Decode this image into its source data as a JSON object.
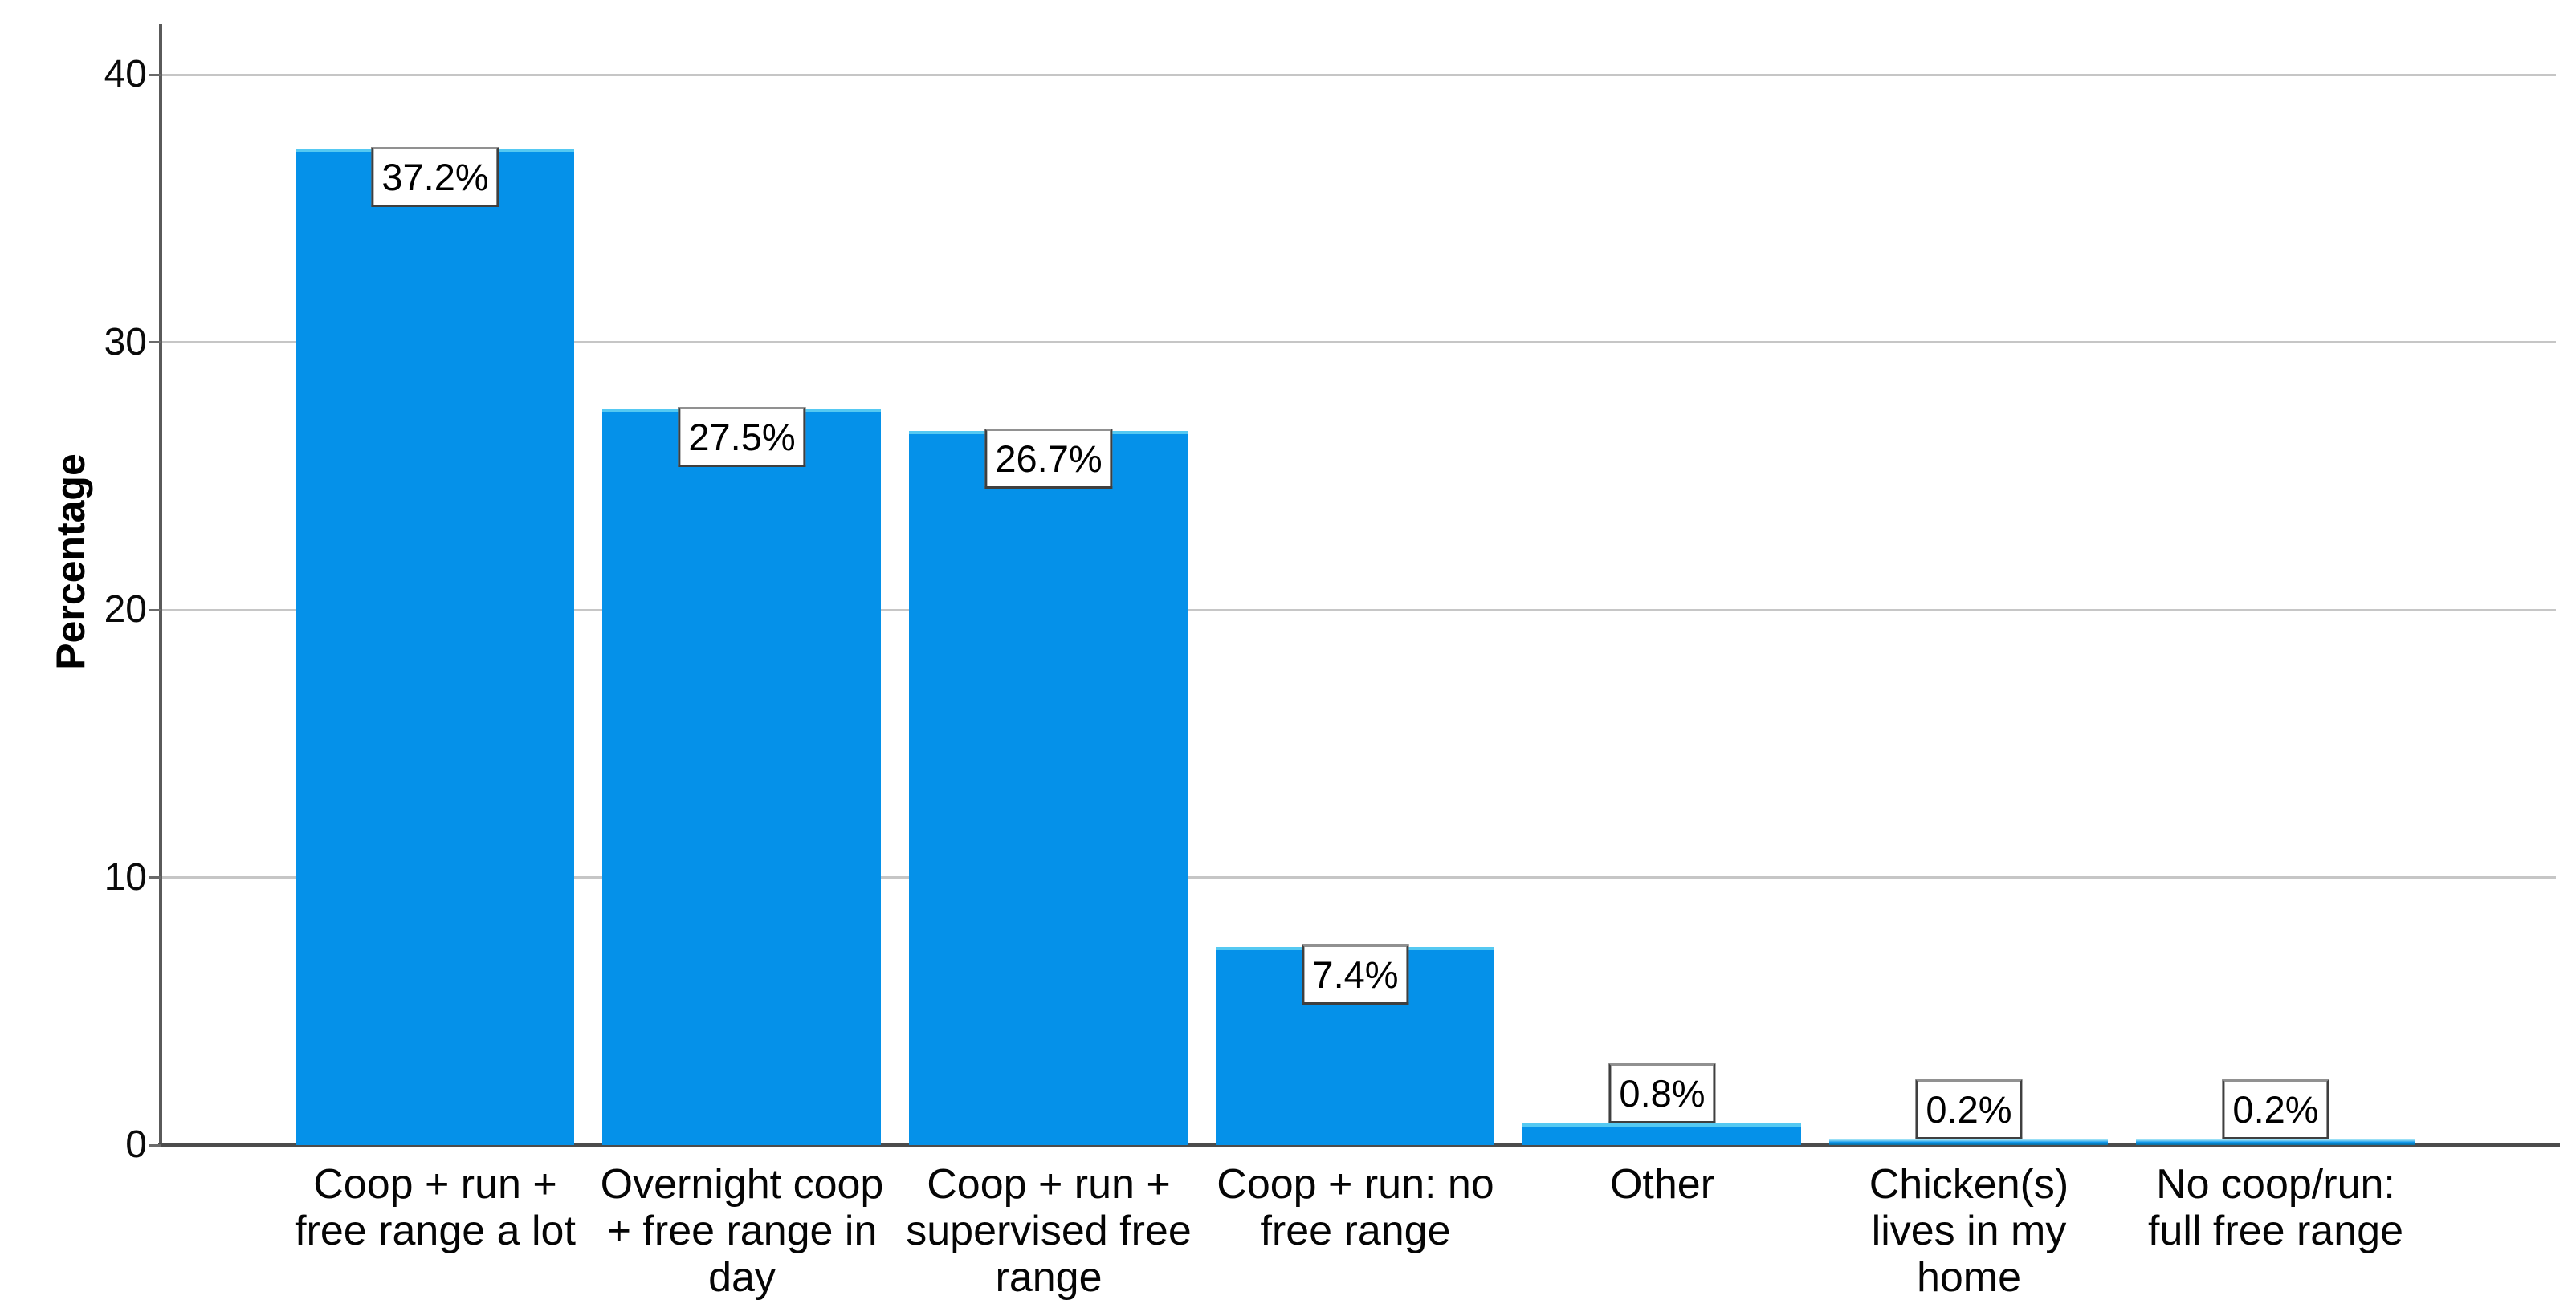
{
  "chart_data": {
    "type": "bar",
    "title": "",
    "xlabel": "",
    "ylabel": "Percentage",
    "ylim": [
      0,
      41.9
    ],
    "yticks": [
      0,
      10,
      20,
      30,
      40
    ],
    "ytick_labels": [
      "0",
      "10",
      "20",
      "30",
      "40"
    ],
    "grid": "horizontal-light-gray",
    "legend": "none",
    "categories": [
      "Coop + run + free range a lot",
      "Overnight coop + free range in day",
      "Coop + run + supervised free range",
      "Coop + run: no free range",
      "Other",
      "Chicken(s) lives in my home",
      "No coop/run: full free range"
    ],
    "category_lines": [
      [
        "Coop + run +",
        "free range a lot"
      ],
      [
        "Overnight coop",
        "+ free range in",
        "day"
      ],
      [
        "Coop + run +",
        "supervised free",
        "range"
      ],
      [
        "Coop + run: no",
        "free range"
      ],
      [
        "Other"
      ],
      [
        "Chicken(s)",
        "lives in my",
        "home"
      ],
      [
        "No coop/run:",
        "full free range"
      ]
    ],
    "values": [
      37.2,
      27.5,
      26.7,
      7.4,
      0.8,
      0.2,
      0.2
    ],
    "value_labels": [
      "37.2%",
      "27.5%",
      "26.7%",
      "7.4%",
      "0.8%",
      "0.2%",
      "0.2%"
    ],
    "colors": {
      "bar": "#0591e9",
      "bar_highlight": "#aeeaf8",
      "bar_shadow": "#0a6f9e",
      "gridline": "#c6c6c6",
      "axis": "#4c4c4c",
      "label_box_border": "#3f3f3f",
      "label_box_bg": "#ffffff",
      "text": "#000000"
    }
  }
}
